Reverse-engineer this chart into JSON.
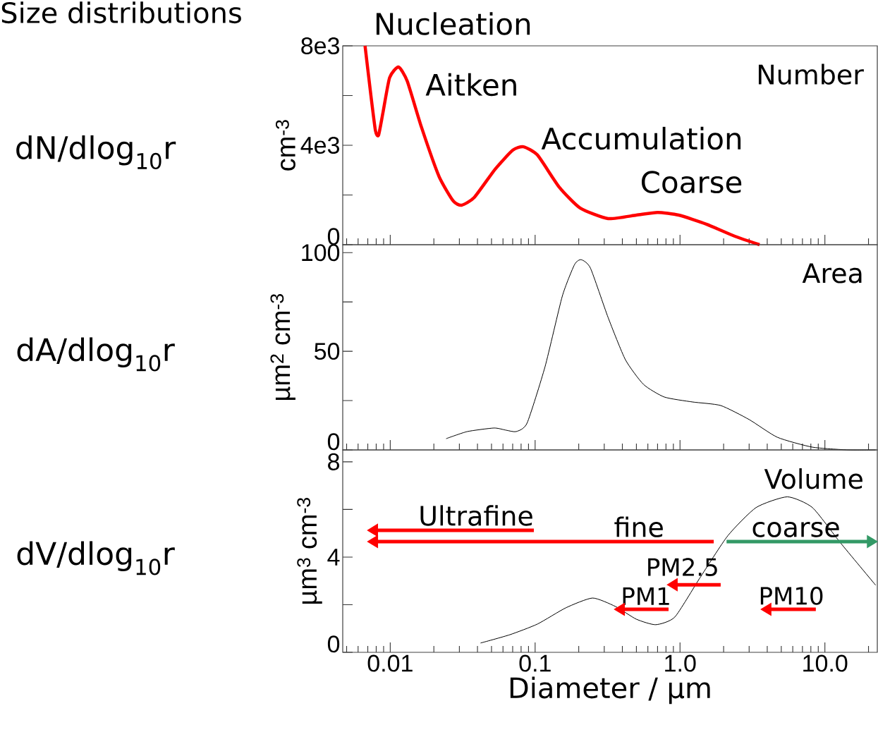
{
  "chart_data": [
    {
      "type": "line",
      "title": "Number",
      "ylabel": "cm$^{-3}$",
      "annotations": [
        "Size distributions",
        "dN/dlog$_{10}$r",
        {
          "text": "Nucleation",
          "x": 0.0067,
          "y": 8000
        },
        {
          "text": "Aitken",
          "x": 0.0114,
          "y": 7150
        },
        {
          "text": "Accumulation",
          "x": 0.083,
          "y": 3940
        },
        {
          "text": "Coarse",
          "x": 0.7,
          "y": 1300
        }
      ],
      "x": [
        0.0067,
        0.0073,
        0.0079,
        0.0083,
        0.0089,
        0.0099,
        0.0114,
        0.0131,
        0.0164,
        0.0217,
        0.0272,
        0.0311,
        0.038,
        0.053,
        0.07,
        0.083,
        0.104,
        0.146,
        0.204,
        0.319,
        0.5,
        0.7,
        0.98,
        1.53,
        2.39,
        3.54
      ],
      "series": [
        {
          "color": "#ff0000",
          "values": [
            8000,
            6160,
            4600,
            4400,
            5300,
            6720,
            7150,
            6580,
            4740,
            2750,
            1760,
            1590,
            1900,
            3040,
            3800,
            3940,
            3600,
            2330,
            1480,
            1050,
            1190,
            1300,
            1190,
            820,
            340,
            0
          ]
        }
      ],
      "xlim": [
        0.0047,
        23
      ],
      "ylim": [
        0,
        8000
      ],
      "log": "x",
      "tick_labels": "y",
      "yticks": [
        0,
        {
          "value": 2000,
          "label": null
        },
        {
          "value": 4000,
          "label": "4e3"
        },
        {
          "value": 6000,
          "label": null
        },
        {
          "value": 8000,
          "label": "8e3"
        }
      ]
    },
    {
      "type": "line",
      "title": "Area",
      "ylabel": "µm$^{2}$ cm$^{-3}$",
      "annotations": [
        "dA/dlog$_{10}$r"
      ],
      "x": [
        0.0243,
        0.034,
        0.052,
        0.063,
        0.074,
        0.088,
        0.117,
        0.154,
        0.187,
        0.208,
        0.241,
        0.319,
        0.42,
        0.56,
        0.78,
        1.22,
        1.91,
        3.0,
        4.7,
        8.2,
        14.4,
        22.4
      ],
      "series": [
        {
          "color": "#000000",
          "values": [
            5.7,
            9.3,
            11.1,
            10.0,
            9.3,
            13.6,
            42.1,
            77.9,
            93.9,
            96.4,
            92.1,
            67.1,
            45.7,
            33.2,
            26.8,
            24.3,
            22.5,
            15.4,
            6.4,
            1.4,
            0,
            0
          ]
        }
      ],
      "xlim": [
        0.0047,
        23
      ],
      "ylim": [
        0,
        104
      ],
      "log": "x",
      "tick_labels": "y",
      "yticks": [
        0,
        {
          "value": 25,
          "label": null
        },
        50,
        {
          "value": 75,
          "label": null
        },
        100
      ]
    },
    {
      "type": "line",
      "title": "Volume",
      "ylabel": "µm$^{3}$ cm$^{-3}$",
      "xlabel": "Diameter / µm",
      "annotations": [
        "dV/dlog$_{10}$r",
        "Ultrafine",
        "fine",
        "coarse",
        "PM2.5",
        "PM1",
        "PM10"
      ],
      "x": [
        0.042,
        0.067,
        0.104,
        0.163,
        0.249,
        0.357,
        0.5,
        0.68,
        0.92,
        1.37,
        2.14,
        3.35,
        5.5,
        8.2,
        12.8,
        22.4
      ],
      "series": [
        {
          "color": "#000000",
          "values": [
            0.39,
            0.74,
            1.19,
            1.87,
            2.28,
            1.93,
            1.39,
            1.16,
            1.48,
            3.12,
            4.9,
            6.08,
            6.53,
            6.08,
            4.6,
            2.82
          ]
        }
      ],
      "xlim": [
        0.0047,
        23
      ],
      "ylim": [
        0,
        8.5
      ],
      "log": "x",
      "xticks": [
        0.01,
        0.1,
        {
          "value": 1,
          "label": "1.0"
        },
        {
          "value": 10,
          "label": "10.0"
        }
      ],
      "yticks": [
        0,
        {
          "value": 2,
          "label": null
        },
        4,
        {
          "value": 6,
          "label": null
        },
        8
      ]
    }
  ]
}
